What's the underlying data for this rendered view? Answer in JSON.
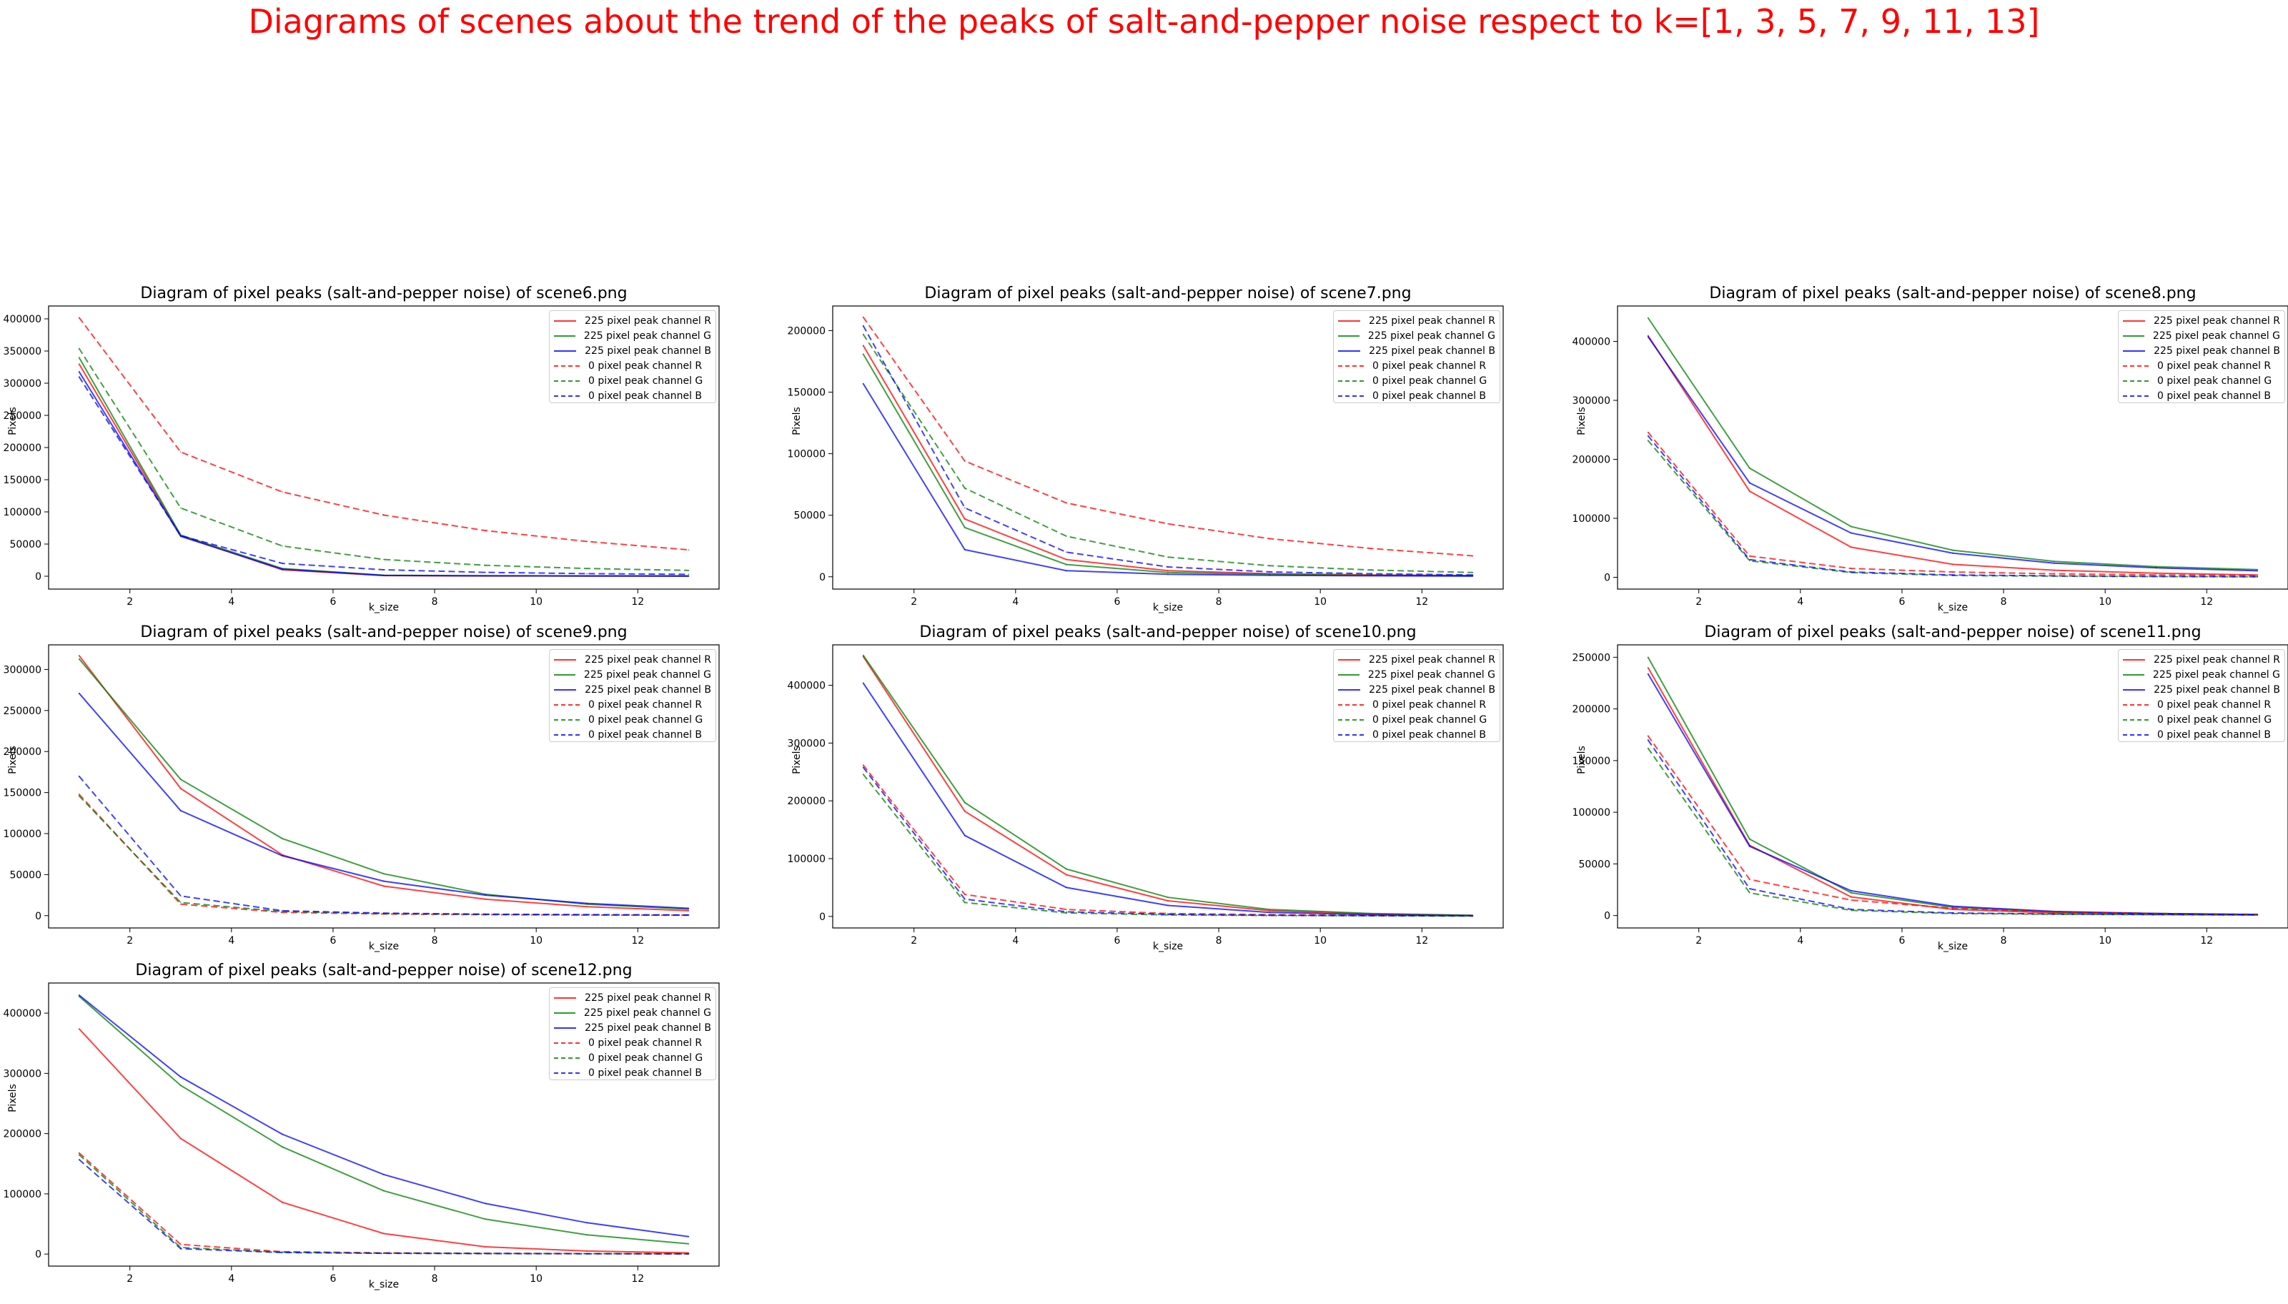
{
  "suptitle": "Diagrams of scenes about the trend of the peaks of salt-and-pepper noise respect to k=[1, 3, 5, 7, 9, 11, 13]",
  "colors": {
    "suptitle": "#ff0000",
    "R": "#ff0000",
    "G": "#008000",
    "B": "#0000ff"
  },
  "chart_data": [
    {
      "type": "line",
      "title": "Diagram of pixel peaks (salt-and-pepper noise) of scene6.png",
      "xlabel": "k_size",
      "ylabel": "Pixels",
      "x": [
        1,
        3,
        5,
        7,
        9,
        11,
        13
      ],
      "xlim": [
        0.4,
        13.6
      ],
      "ylim": [
        -20000,
        420000
      ],
      "xticks": [
        2,
        4,
        6,
        8,
        10,
        12
      ],
      "yticks": [
        0,
        50000,
        100000,
        150000,
        200000,
        250000,
        300000,
        350000,
        400000
      ],
      "legend": "upper right",
      "series": [
        {
          "name": "225 pixel peak channel R",
          "style": "solid",
          "color": "R",
          "values": [
            330000,
            63000,
            10000,
            1000,
            500,
            300,
            200
          ]
        },
        {
          "name": "225 pixel peak channel G",
          "style": "solid",
          "color": "G",
          "values": [
            340000,
            64000,
            12000,
            1500,
            800,
            500,
            300
          ]
        },
        {
          "name": "225 pixel peak channel B",
          "style": "solid",
          "color": "B",
          "values": [
            318000,
            62000,
            11000,
            1200,
            600,
            400,
            300
          ]
        },
        {
          "name": "0 pixel peak channel R",
          "style": "dashed",
          "color": "R",
          "values": [
            402000,
            193000,
            131000,
            95000,
            71000,
            54000,
            41000
          ]
        },
        {
          "name": "0 pixel peak channel G",
          "style": "dashed",
          "color": "G",
          "values": [
            354000,
            106000,
            47000,
            26000,
            17000,
            12000,
            9000
          ]
        },
        {
          "name": "0 pixel peak channel B",
          "style": "dashed",
          "color": "B",
          "values": [
            310000,
            63000,
            20000,
            10000,
            6000,
            4000,
            3000
          ]
        }
      ]
    },
    {
      "type": "line",
      "title": "Diagram of pixel peaks (salt-and-pepper noise) of scene7.png",
      "xlabel": "k_size",
      "ylabel": "Pixels",
      "x": [
        1,
        3,
        5,
        7,
        9,
        11,
        13
      ],
      "xlim": [
        0.4,
        13.6
      ],
      "ylim": [
        -10000,
        220000
      ],
      "xticks": [
        2,
        4,
        6,
        8,
        10,
        12
      ],
      "yticks": [
        0,
        50000,
        100000,
        150000,
        200000
      ],
      "legend": "upper right",
      "series": [
        {
          "name": "225 pixel peak channel R",
          "style": "solid",
          "color": "R",
          "values": [
            188000,
            47000,
            14000,
            5000,
            2500,
            1500,
            1000
          ]
        },
        {
          "name": "225 pixel peak channel G",
          "style": "solid",
          "color": "G",
          "values": [
            181000,
            40000,
            10000,
            3500,
            2000,
            1200,
            800
          ]
        },
        {
          "name": "225 pixel peak channel B",
          "style": "solid",
          "color": "B",
          "values": [
            157000,
            22000,
            5000,
            2000,
            1200,
            800,
            500
          ]
        },
        {
          "name": "0 pixel peak channel R",
          "style": "dashed",
          "color": "R",
          "values": [
            211000,
            94000,
            60000,
            43000,
            31000,
            23000,
            17000
          ]
        },
        {
          "name": "0 pixel peak channel G",
          "style": "dashed",
          "color": "G",
          "values": [
            197000,
            72000,
            33000,
            16000,
            9000,
            5500,
            3500
          ]
        },
        {
          "name": "0 pixel peak channel B",
          "style": "dashed",
          "color": "B",
          "values": [
            204000,
            56000,
            20000,
            8000,
            4000,
            2500,
            1500
          ]
        }
      ]
    },
    {
      "type": "line",
      "title": "Diagram of pixel peaks (salt-and-pepper noise) of scene8.png",
      "xlabel": "k_size",
      "ylabel": "Pixels",
      "x": [
        1,
        3,
        5,
        7,
        9,
        11,
        13
      ],
      "xlim": [
        0.4,
        13.6
      ],
      "ylim": [
        -20000,
        460000
      ],
      "xticks": [
        2,
        4,
        6,
        8,
        10,
        12
      ],
      "yticks": [
        0,
        100000,
        200000,
        300000,
        400000
      ],
      "legend": "upper right",
      "series": [
        {
          "name": "225 pixel peak channel R",
          "style": "solid",
          "color": "R",
          "values": [
            410000,
            146000,
            51000,
            22000,
            12000,
            7000,
            4000
          ]
        },
        {
          "name": "225 pixel peak channel G",
          "style": "solid",
          "color": "G",
          "values": [
            440000,
            185000,
            86000,
            46000,
            27000,
            18000,
            13000
          ]
        },
        {
          "name": "225 pixel peak channel B",
          "style": "solid",
          "color": "B",
          "values": [
            408000,
            160000,
            75000,
            41000,
            24000,
            16000,
            11000
          ]
        },
        {
          "name": "0 pixel peak channel R",
          "style": "dashed",
          "color": "R",
          "values": [
            246000,
            36000,
            15000,
            9000,
            6000,
            4000,
            3000
          ]
        },
        {
          "name": "0 pixel peak channel G",
          "style": "dashed",
          "color": "G",
          "values": [
            232000,
            28000,
            8000,
            3000,
            2000,
            1200,
            800
          ]
        },
        {
          "name": "0 pixel peak channel B",
          "style": "dashed",
          "color": "B",
          "values": [
            240000,
            30000,
            9000,
            4000,
            2500,
            1500,
            1000
          ]
        }
      ]
    },
    {
      "type": "line",
      "title": "Diagram of pixel peaks (salt-and-pepper noise) of scene9.png",
      "xlabel": "k_size",
      "ylabel": "Pixels",
      "x": [
        1,
        3,
        5,
        7,
        9,
        11,
        13
      ],
      "xlim": [
        0.4,
        13.6
      ],
      "ylim": [
        -15000,
        330000
      ],
      "xticks": [
        2,
        4,
        6,
        8,
        10,
        12
      ],
      "yticks": [
        0,
        50000,
        100000,
        150000,
        200000,
        250000,
        300000
      ],
      "legend": "upper right",
      "series": [
        {
          "name": "225 pixel peak channel R",
          "style": "solid",
          "color": "R",
          "values": [
            317000,
            155000,
            74000,
            36000,
            20000,
            11000,
            6000
          ]
        },
        {
          "name": "225 pixel peak channel G",
          "style": "solid",
          "color": "G",
          "values": [
            313000,
            166000,
            94000,
            51000,
            26000,
            14000,
            8000
          ]
        },
        {
          "name": "225 pixel peak channel B",
          "style": "solid",
          "color": "B",
          "values": [
            271000,
            128000,
            73000,
            42000,
            25000,
            15000,
            9000
          ]
        },
        {
          "name": "0 pixel peak channel R",
          "style": "dashed",
          "color": "R",
          "values": [
            148000,
            14000,
            4000,
            2000,
            1200,
            800,
            500
          ]
        },
        {
          "name": "0 pixel peak channel G",
          "style": "dashed",
          "color": "G",
          "values": [
            146000,
            16000,
            5000,
            2500,
            1500,
            1000,
            700
          ]
        },
        {
          "name": "0 pixel peak channel B",
          "style": "dashed",
          "color": "B",
          "values": [
            170000,
            24000,
            6000,
            3000,
            1800,
            1200,
            800
          ]
        }
      ]
    },
    {
      "type": "line",
      "title": "Diagram of pixel peaks (salt-and-pepper noise) of scene10.png",
      "xlabel": "k_size",
      "ylabel": "Pixels",
      "x": [
        1,
        3,
        5,
        7,
        9,
        11,
        13
      ],
      "xlim": [
        0.4,
        13.6
      ],
      "ylim": [
        -20000,
        470000
      ],
      "xticks": [
        2,
        4,
        6,
        8,
        10,
        12
      ],
      "yticks": [
        0,
        100000,
        200000,
        300000,
        400000
      ],
      "legend": "upper right",
      "series": [
        {
          "name": "225 pixel peak channel R",
          "style": "solid",
          "color": "R",
          "values": [
            450000,
            182000,
            72000,
            27000,
            10000,
            4000,
            1500
          ]
        },
        {
          "name": "225 pixel peak channel G",
          "style": "solid",
          "color": "G",
          "values": [
            452000,
            197000,
            82000,
            33000,
            12000,
            5000,
            2000
          ]
        },
        {
          "name": "225 pixel peak channel B",
          "style": "solid",
          "color": "B",
          "values": [
            404000,
            140000,
            50000,
            19000,
            7000,
            3000,
            1200
          ]
        },
        {
          "name": "0 pixel peak channel R",
          "style": "dashed",
          "color": "R",
          "values": [
            262000,
            38000,
            12000,
            5000,
            3000,
            1800,
            1200
          ]
        },
        {
          "name": "0 pixel peak channel G",
          "style": "dashed",
          "color": "G",
          "values": [
            246000,
            24000,
            6000,
            2500,
            1500,
            1000,
            700
          ]
        },
        {
          "name": "0 pixel peak channel B",
          "style": "dashed",
          "color": "B",
          "values": [
            258000,
            30000,
            8000,
            3500,
            2000,
            1200,
            800
          ]
        }
      ]
    },
    {
      "type": "line",
      "title": "Diagram of pixel peaks (salt-and-pepper noise) of scene11.png",
      "xlabel": "k_size",
      "ylabel": "Pixels",
      "x": [
        1,
        3,
        5,
        7,
        9,
        11,
        13
      ],
      "xlim": [
        0.4,
        13.6
      ],
      "ylim": [
        -12000,
        262000
      ],
      "xticks": [
        2,
        4,
        6,
        8,
        10,
        12
      ],
      "yticks": [
        0,
        50000,
        100000,
        150000,
        200000,
        250000
      ],
      "legend": "upper right",
      "series": [
        {
          "name": "225 pixel peak channel R",
          "style": "solid",
          "color": "R",
          "values": [
            240000,
            68000,
            18000,
            6000,
            2500,
            1500,
            800
          ]
        },
        {
          "name": "225 pixel peak channel G",
          "style": "solid",
          "color": "G",
          "values": [
            250000,
            74000,
            22000,
            8000,
            3500,
            2000,
            1000
          ]
        },
        {
          "name": "225 pixel peak channel B",
          "style": "solid",
          "color": "B",
          "values": [
            234000,
            67000,
            24000,
            9000,
            4000,
            2000,
            1000
          ]
        },
        {
          "name": "0 pixel peak channel R",
          "style": "dashed",
          "color": "R",
          "values": [
            174000,
            35000,
            15000,
            7000,
            3500,
            2000,
            1200
          ]
        },
        {
          "name": "0 pixel peak channel G",
          "style": "dashed",
          "color": "G",
          "values": [
            162000,
            22000,
            5000,
            2000,
            1200,
            800,
            500
          ]
        },
        {
          "name": "0 pixel peak channel B",
          "style": "dashed",
          "color": "B",
          "values": [
            170000,
            26000,
            6000,
            2500,
            1500,
            1000,
            600
          ]
        }
      ]
    },
    {
      "type": "line",
      "title": "Diagram of pixel peaks (salt-and-pepper noise) of scene12.png",
      "xlabel": "k_size",
      "ylabel": "Pixels",
      "x": [
        1,
        3,
        5,
        7,
        9,
        11,
        13
      ],
      "xlim": [
        0.4,
        13.6
      ],
      "ylim": [
        -20000,
        450000
      ],
      "xticks": [
        2,
        4,
        6,
        8,
        10,
        12
      ],
      "yticks": [
        0,
        100000,
        200000,
        300000,
        400000
      ],
      "legend": "upper right",
      "series": [
        {
          "name": "225 pixel peak channel R",
          "style": "solid",
          "color": "R",
          "values": [
            374000,
            192000,
            86000,
            34000,
            12000,
            5000,
            2000
          ]
        },
        {
          "name": "225 pixel peak channel G",
          "style": "solid",
          "color": "G",
          "values": [
            428000,
            280000,
            178000,
            105000,
            58000,
            32000,
            17000
          ]
        },
        {
          "name": "225 pixel peak channel B",
          "style": "solid",
          "color": "B",
          "values": [
            430000,
            294000,
            199000,
            132000,
            84000,
            52000,
            29000
          ]
        },
        {
          "name": "0 pixel peak channel R",
          "style": "dashed",
          "color": "R",
          "values": [
            168000,
            16000,
            4000,
            2000,
            1200,
            800,
            500
          ]
        },
        {
          "name": "0 pixel peak channel G",
          "style": "dashed",
          "color": "G",
          "values": [
            165000,
            11000,
            3000,
            1500,
            1000,
            600,
            400
          ]
        },
        {
          "name": "0 pixel peak channel B",
          "style": "dashed",
          "color": "B",
          "values": [
            157000,
            9000,
            2500,
            1200,
            800,
            500,
            300
          ]
        }
      ]
    }
  ]
}
